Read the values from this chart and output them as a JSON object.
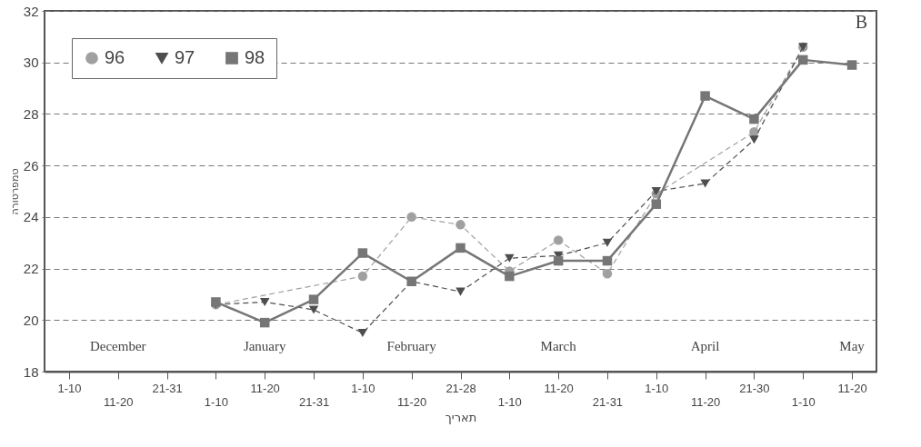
{
  "chart_data": {
    "type": "line",
    "title": "B",
    "xlabel": "תאריך",
    "ylabel": "טמפרטורה",
    "categories": [
      "1-10",
      "11-20",
      "21-31",
      "1-10",
      "11-20",
      "21-31",
      "1-10",
      "11-20",
      "21-28",
      "1-10",
      "11-20",
      "21-31",
      "1-10",
      "11-20",
      "21-30",
      "1-10",
      "11-20"
    ],
    "series": [
      {
        "name": "96",
        "color": "#a0a0a0",
        "marker": "circle",
        "line_style": "dashed",
        "values": [
          null,
          null,
          null,
          20.6,
          null,
          null,
          21.7,
          24.0,
          23.7,
          21.9,
          23.1,
          21.8,
          24.9,
          null,
          27.3,
          30.6,
          null
        ]
      },
      {
        "name": "97",
        "color": "#4e4e4e",
        "marker": "triangle",
        "line_style": "dashed",
        "values": [
          null,
          null,
          null,
          20.6,
          20.7,
          20.4,
          19.5,
          21.5,
          21.1,
          22.4,
          22.5,
          23.0,
          25.0,
          25.3,
          27.0,
          30.6,
          null
        ]
      },
      {
        "name": "98",
        "color": "#767676",
        "marker": "square",
        "line_style": "solid",
        "values": [
          null,
          null,
          null,
          20.7,
          19.9,
          20.8,
          22.6,
          21.5,
          22.8,
          21.7,
          22.3,
          22.3,
          24.5,
          28.7,
          27.8,
          30.1,
          29.9
        ]
      }
    ],
    "annotations": [
      "December",
      "January",
      "February",
      "March",
      "April",
      "May"
    ],
    "ylim": [
      18,
      32
    ],
    "yticks": [
      18,
      20,
      22,
      24,
      26,
      28,
      30,
      32
    ],
    "grid": "y",
    "legend": "top left"
  }
}
